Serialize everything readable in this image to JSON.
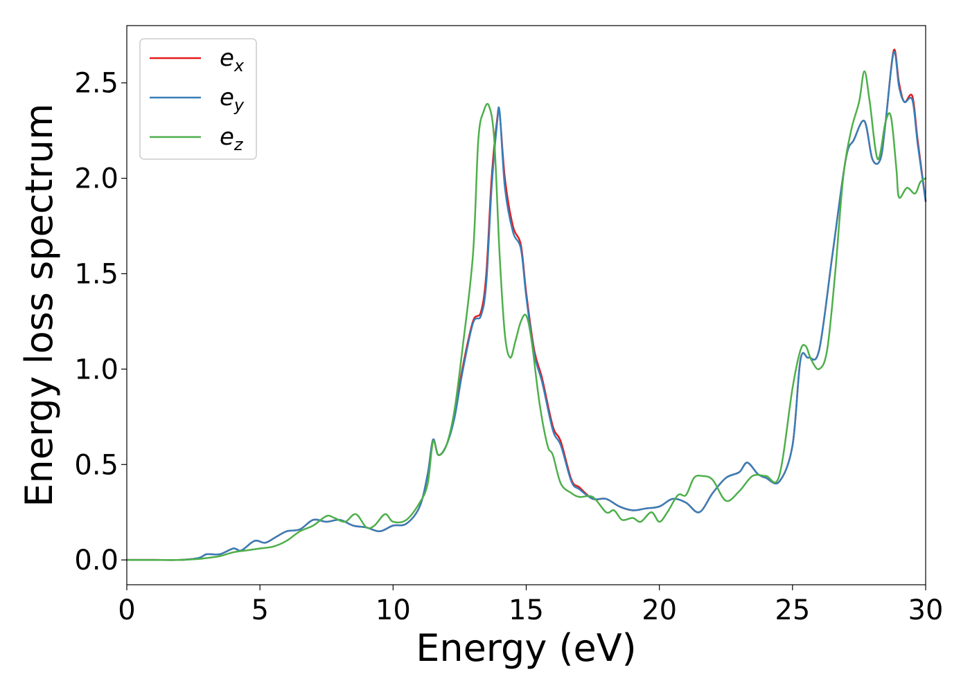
{
  "chart_data": {
    "type": "line",
    "title": "",
    "xlabel": "Energy (eV)",
    "ylabel": "Energy loss spectrum",
    "xlim": [
      0,
      30
    ],
    "ylim": [
      -0.13,
      2.8
    ],
    "xticks": [
      0,
      5,
      10,
      15,
      20,
      25,
      30
    ],
    "yticks": [
      0.0,
      0.5,
      1.0,
      1.5,
      2.0,
      2.5
    ],
    "xtick_labels": [
      "0",
      "5",
      "10",
      "15",
      "20",
      "25",
      "30"
    ],
    "ytick_labels": [
      "0.0",
      "0.5",
      "1.0",
      "1.5",
      "2.0",
      "2.5"
    ],
    "grid": false,
    "legend": "top-left",
    "series": [
      {
        "name": "e_x",
        "label_main": "e",
        "label_sub": "x",
        "color": "#e41a1c",
        "x": [
          0,
          1,
          2,
          2.7,
          3,
          3.5,
          4,
          4.3,
          4.8,
          5.2,
          5.6,
          6,
          6.5,
          7,
          7.5,
          8,
          8.5,
          9,
          9.5,
          10,
          10.5,
          11,
          11.3,
          11.5,
          11.7,
          12,
          12.3,
          12.6,
          13,
          13.3,
          13.5,
          13.7,
          13.9,
          14,
          14.2,
          14.5,
          14.8,
          15,
          15.3,
          15.6,
          16,
          16.3,
          16.7,
          17,
          17.5,
          18,
          18.5,
          19,
          19.5,
          20,
          20.5,
          21,
          21.5,
          22,
          22.5,
          23,
          23.3,
          23.7,
          24,
          24.5,
          25,
          25.3,
          25.6,
          26,
          26.5,
          27,
          27.3,
          27.7,
          28,
          28.3,
          28.5,
          28.8,
          29,
          29.2,
          29.5,
          29.7,
          30
        ],
        "y": [
          0.0,
          0.0,
          0.0,
          0.01,
          0.03,
          0.03,
          0.06,
          0.05,
          0.1,
          0.09,
          0.12,
          0.15,
          0.16,
          0.21,
          0.2,
          0.21,
          0.18,
          0.17,
          0.15,
          0.18,
          0.19,
          0.28,
          0.45,
          0.63,
          0.55,
          0.6,
          0.75,
          1.0,
          1.25,
          1.3,
          1.5,
          2.0,
          2.3,
          2.34,
          2.0,
          1.75,
          1.65,
          1.4,
          1.1,
          0.95,
          0.7,
          0.62,
          0.42,
          0.38,
          0.32,
          0.32,
          0.28,
          0.26,
          0.27,
          0.28,
          0.32,
          0.3,
          0.25,
          0.35,
          0.43,
          0.46,
          0.51,
          0.45,
          0.43,
          0.41,
          0.6,
          1.05,
          1.06,
          1.1,
          1.6,
          2.1,
          2.2,
          2.3,
          2.1,
          2.1,
          2.3,
          2.67,
          2.5,
          2.4,
          2.43,
          2.2,
          1.88
        ]
      },
      {
        "name": "e_y",
        "label_main": "e",
        "label_sub": "y",
        "color": "#377eb8",
        "x": [
          0,
          1,
          2,
          2.7,
          3,
          3.5,
          4,
          4.3,
          4.8,
          5.2,
          5.6,
          6,
          6.5,
          7,
          7.5,
          8,
          8.5,
          9,
          9.5,
          10,
          10.5,
          11,
          11.3,
          11.5,
          11.7,
          12,
          12.3,
          12.6,
          13,
          13.3,
          13.5,
          13.7,
          13.9,
          14,
          14.2,
          14.5,
          14.8,
          15,
          15.3,
          15.6,
          16,
          16.3,
          16.7,
          17,
          17.5,
          18,
          18.5,
          19,
          19.5,
          20,
          20.5,
          21,
          21.5,
          22,
          22.5,
          23,
          23.3,
          23.7,
          24,
          24.5,
          25,
          25.3,
          25.6,
          26,
          26.5,
          27,
          27.3,
          27.7,
          28,
          28.3,
          28.5,
          28.8,
          29,
          29.2,
          29.5,
          29.7,
          30
        ],
        "y": [
          0.0,
          0.0,
          0.0,
          0.01,
          0.03,
          0.03,
          0.06,
          0.05,
          0.1,
          0.09,
          0.12,
          0.15,
          0.16,
          0.21,
          0.2,
          0.21,
          0.18,
          0.17,
          0.15,
          0.18,
          0.19,
          0.28,
          0.45,
          0.63,
          0.55,
          0.6,
          0.74,
          0.98,
          1.24,
          1.28,
          1.45,
          1.95,
          2.28,
          2.35,
          1.95,
          1.72,
          1.63,
          1.38,
          1.08,
          0.93,
          0.68,
          0.6,
          0.41,
          0.37,
          0.32,
          0.32,
          0.28,
          0.26,
          0.27,
          0.28,
          0.32,
          0.3,
          0.25,
          0.35,
          0.43,
          0.46,
          0.51,
          0.45,
          0.43,
          0.41,
          0.6,
          1.05,
          1.06,
          1.1,
          1.6,
          2.1,
          2.2,
          2.3,
          2.1,
          2.1,
          2.3,
          2.66,
          2.48,
          2.4,
          2.41,
          2.18,
          1.88
        ]
      },
      {
        "name": "e_z",
        "label_main": "e",
        "label_sub": "z",
        "color": "#4daf4a",
        "x": [
          0,
          1,
          2,
          2.7,
          3,
          3.5,
          4,
          4.5,
          5,
          5.5,
          6,
          6.5,
          7,
          7.5,
          7.8,
          8.2,
          8.6,
          9,
          9.3,
          9.7,
          10,
          10.5,
          11,
          11.3,
          11.5,
          11.7,
          12,
          12.3,
          12.6,
          13,
          13.2,
          13.4,
          13.6,
          13.8,
          14,
          14.2,
          14.4,
          14.6,
          14.8,
          15,
          15.2,
          15.5,
          15.8,
          16,
          16.3,
          16.7,
          17,
          17.5,
          18,
          18.3,
          18.6,
          19,
          19.3,
          19.7,
          20,
          20.3,
          20.7,
          21,
          21.3,
          21.6,
          22,
          22.5,
          23,
          23.5,
          24,
          24.5,
          25,
          25.3,
          25.5,
          25.7,
          26,
          26.3,
          26.6,
          26.9,
          27.2,
          27.5,
          27.7,
          27.9,
          28.2,
          28.5,
          28.7,
          28.9,
          29,
          29.3,
          29.6,
          29.8,
          30
        ],
        "y": [
          0.0,
          0.0,
          0.0,
          0.005,
          0.01,
          0.02,
          0.04,
          0.05,
          0.06,
          0.07,
          0.1,
          0.15,
          0.18,
          0.23,
          0.22,
          0.2,
          0.24,
          0.17,
          0.18,
          0.24,
          0.2,
          0.21,
          0.3,
          0.4,
          0.62,
          0.55,
          0.6,
          0.78,
          1.1,
          1.6,
          2.2,
          2.35,
          2.38,
          2.2,
          1.6,
          1.18,
          1.06,
          1.15,
          1.25,
          1.28,
          1.15,
          0.82,
          0.6,
          0.55,
          0.4,
          0.35,
          0.33,
          0.33,
          0.25,
          0.26,
          0.21,
          0.22,
          0.2,
          0.25,
          0.2,
          0.25,
          0.34,
          0.34,
          0.43,
          0.44,
          0.42,
          0.31,
          0.36,
          0.44,
          0.44,
          0.44,
          0.9,
          1.1,
          1.12,
          1.05,
          1.0,
          1.1,
          1.5,
          2.0,
          2.25,
          2.4,
          2.56,
          2.4,
          2.1,
          2.3,
          2.32,
          2.05,
          1.9,
          1.95,
          1.92,
          1.98,
          2.0
        ]
      }
    ]
  }
}
